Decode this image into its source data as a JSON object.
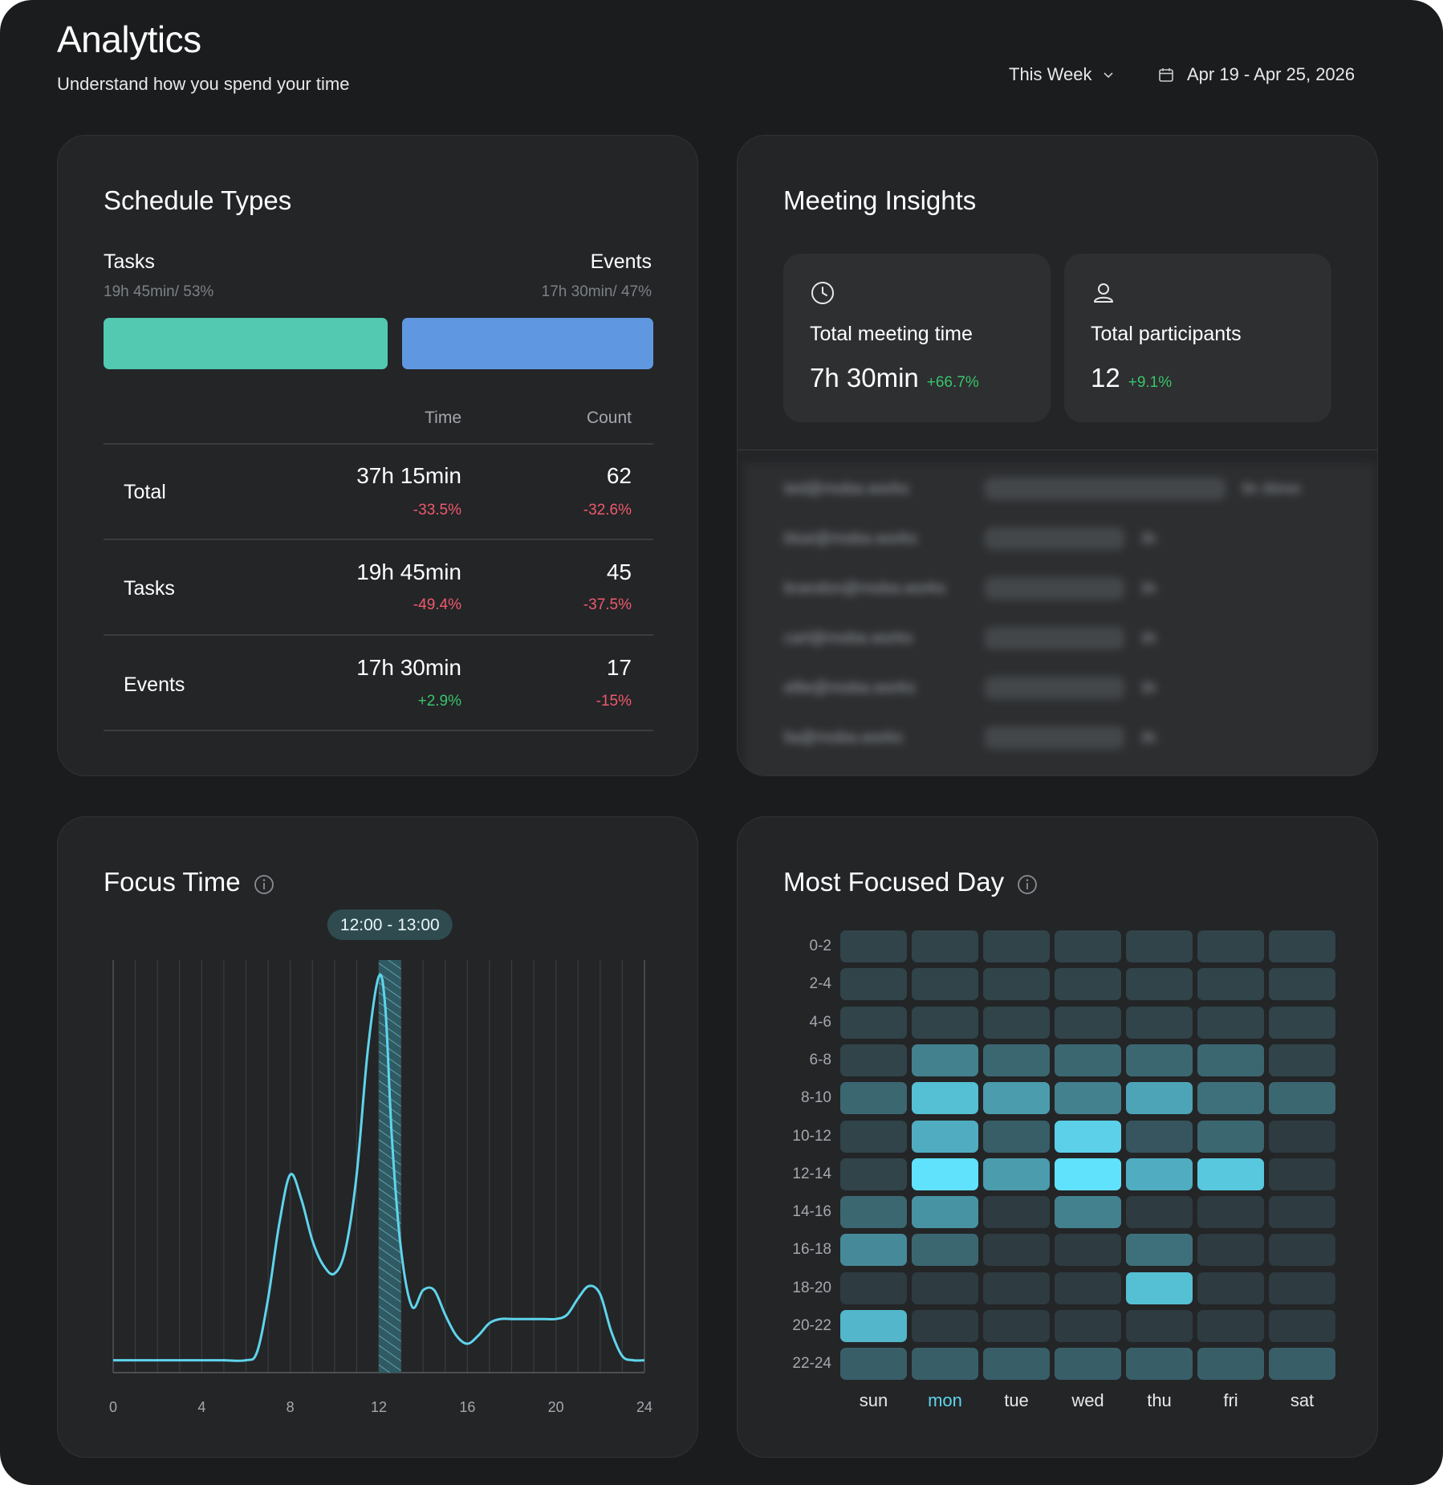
{
  "header": {
    "title": "Analytics",
    "subtitle": "Understand how you spend your time",
    "range_label": "This Week",
    "date_range": "Apr 19 - Apr 25, 2026"
  },
  "schedule_types": {
    "title": "Schedule Types",
    "tasks_label": "Tasks",
    "tasks_sub": "19h 45min/ 53%",
    "events_label": "Events",
    "events_sub": "17h 30min/ 47%",
    "tasks_share": 0.53,
    "events_share": 0.47,
    "colors": {
      "tasks": "#52c9b0",
      "events": "#5f98e0"
    },
    "col_time": "Time",
    "col_count": "Count",
    "rows": [
      {
        "label": "Total",
        "time": "37h 15min",
        "time_delta": "-33.5%",
        "count": "62",
        "count_delta": "-32.6%"
      },
      {
        "label": "Tasks",
        "time": "19h 45min",
        "time_delta": "-49.4%",
        "count": "45",
        "count_delta": "-37.5%"
      },
      {
        "label": "Events",
        "time": "17h 30min",
        "time_delta": "+2.9%",
        "count": "17",
        "count_delta": "-15%"
      }
    ]
  },
  "meeting_insights": {
    "title": "Meeting Insights",
    "total_time_label": "Total meeting time",
    "total_time_value": "7h 30min",
    "total_time_delta": "+66.7%",
    "participants_label": "Total participants",
    "participants_value": "12",
    "participants_delta": "+9.1%",
    "blurred_rows": [
      {
        "email": "ted@moba.works",
        "time": "5h 30min",
        "share": 1.0
      },
      {
        "email": "blue@moba.works",
        "time": "3h",
        "share": 0.58
      },
      {
        "email": "brandon@moba.works",
        "time": "3h",
        "share": 0.58
      },
      {
        "email": "carl@moba.works",
        "time": "3h",
        "share": 0.58
      },
      {
        "email": "ellie@moba.works",
        "time": "3h",
        "share": 0.58
      },
      {
        "email": "lia@moba.works",
        "time": "3h",
        "share": 0.58
      }
    ]
  },
  "focus_time": {
    "title": "Focus Time",
    "tooltip": "12:00 - 13:00",
    "chart_data": {
      "type": "line",
      "title": "Focus Time",
      "x_ticks": [
        "0",
        "4",
        "8",
        "12",
        "16",
        "20",
        "24"
      ],
      "xlim": [
        0,
        24
      ],
      "ylim": [
        0,
        100
      ],
      "highlight_range": [
        12,
        13
      ],
      "line_color": "#5fd4ec",
      "x": [
        0,
        1,
        2,
        3,
        4,
        5,
        6,
        6.5,
        7,
        7.5,
        8,
        8.5,
        9,
        9.5,
        10,
        10.5,
        11,
        11.5,
        12,
        12.3,
        12.6,
        13,
        13.5,
        14,
        14.5,
        15,
        15.5,
        16,
        16.5,
        17,
        17.5,
        18,
        18.5,
        19,
        19.5,
        20,
        20.5,
        21,
        21.5,
        22,
        22.5,
        23,
        23.5,
        24
      ],
      "y": [
        3,
        3,
        3,
        3,
        3,
        3,
        3,
        5,
        18,
        36,
        48,
        42,
        32,
        26,
        24,
        30,
        48,
        78,
        96,
        88,
        56,
        30,
        16,
        20,
        20,
        14,
        9,
        7,
        9,
        12,
        13,
        13,
        13,
        13,
        13,
        13,
        14,
        18,
        21,
        19,
        10,
        4,
        3,
        3
      ]
    }
  },
  "most_focused_day": {
    "title": "Most Focused Day",
    "days": [
      "sun",
      "mon",
      "tue",
      "wed",
      "thu",
      "fri",
      "sat"
    ],
    "highlight_day": "mon",
    "slots": [
      "0-2",
      "2-4",
      "4-6",
      "6-8",
      "8-10",
      "10-12",
      "12-14",
      "14-16",
      "16-18",
      "18-20",
      "20-22",
      "22-24"
    ],
    "chart_data": {
      "type": "heatmap",
      "x": [
        "sun",
        "mon",
        "tue",
        "wed",
        "thu",
        "fri",
        "sat"
      ],
      "y": [
        "0-2",
        "2-4",
        "4-6",
        "6-8",
        "8-10",
        "10-12",
        "12-14",
        "14-16",
        "16-18",
        "18-20",
        "20-22",
        "22-24"
      ],
      "values": [
        [
          0.1,
          0.1,
          0.1,
          0.1,
          0.1,
          0.1,
          0.1
        ],
        [
          0.1,
          0.1,
          0.1,
          0.1,
          0.1,
          0.1,
          0.1
        ],
        [
          0.1,
          0.1,
          0.1,
          0.1,
          0.1,
          0.1,
          0.1
        ],
        [
          0.1,
          0.45,
          0.3,
          0.3,
          0.3,
          0.3,
          0.1
        ],
        [
          0.3,
          0.8,
          0.6,
          0.45,
          0.65,
          0.35,
          0.3
        ],
        [
          0.1,
          0.7,
          0.25,
          0.9,
          0.2,
          0.3,
          0.05
        ],
        [
          0.1,
          1.0,
          0.6,
          1.0,
          0.7,
          0.85,
          0.05
        ],
        [
          0.3,
          0.55,
          0.05,
          0.45,
          0.05,
          0.05,
          0.05
        ],
        [
          0.5,
          0.3,
          0.05,
          0.05,
          0.35,
          0.05,
          0.05
        ],
        [
          0.05,
          0.05,
          0.05,
          0.05,
          0.8,
          0.05,
          0.05
        ],
        [
          0.75,
          0.05,
          0.05,
          0.05,
          0.05,
          0.05,
          0.05
        ],
        [
          0.25,
          0.25,
          0.25,
          0.25,
          0.25,
          0.25,
          0.25
        ]
      ]
    }
  }
}
